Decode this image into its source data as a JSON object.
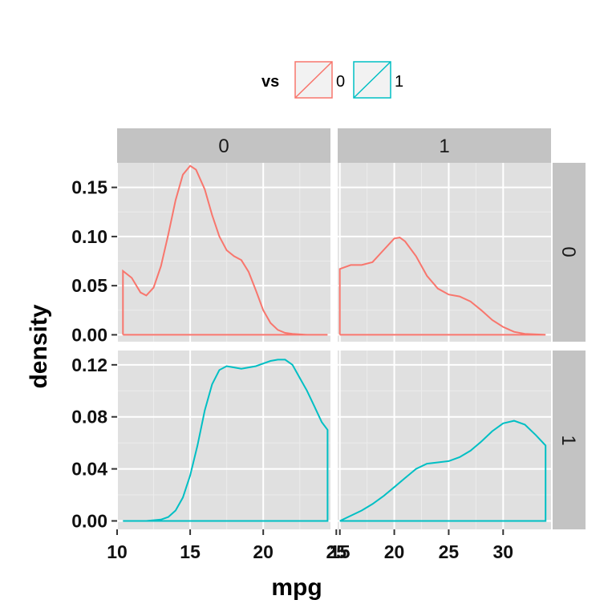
{
  "chart_data": {
    "type": "line",
    "geom": "density",
    "xlabel": "mpg",
    "ylabel": "density",
    "facet_rows": {
      "var": "vs",
      "levels": [
        "0",
        "1"
      ]
    },
    "facet_cols": {
      "var": "vs",
      "levels": [
        "0",
        "1"
      ]
    },
    "legend": {
      "title": "vs",
      "position": "top",
      "entries": [
        {
          "label": "0",
          "color": "#F8766D"
        },
        {
          "label": "1",
          "color": "#00BFC4"
        }
      ]
    },
    "grid": true,
    "x_columns": [
      {
        "col": "0",
        "xlim": [
          10.0,
          24.6
        ],
        "ticks": [
          10,
          15,
          20,
          25
        ]
      },
      {
        "col": "1",
        "xlim": [
          14.8,
          34.4
        ],
        "ticks": [
          15,
          20,
          25,
          30
        ]
      }
    ],
    "y_rows": [
      {
        "row": "0",
        "ylim": [
          -0.007,
          0.175
        ],
        "ticks": [
          0.0,
          0.05,
          0.1,
          0.15
        ],
        "tick_labels": [
          "0.00",
          "0.05",
          "0.10",
          "0.15"
        ]
      },
      {
        "row": "1",
        "ylim": [
          -0.0065,
          0.131
        ],
        "ticks": [
          0.0,
          0.04,
          0.08,
          0.12
        ],
        "tick_labels": [
          "0.00",
          "0.04",
          "0.08",
          "0.12"
        ]
      }
    ],
    "panels": [
      {
        "row": "0",
        "col": "0",
        "series": "0",
        "x": [
          10.4,
          10.4,
          11.0,
          11.6,
          12.0,
          12.5,
          13.0,
          13.5,
          14.0,
          14.5,
          15.0,
          15.4,
          16.0,
          16.5,
          17.0,
          17.5,
          18.0,
          18.5,
          19.0,
          19.5,
          20.0,
          20.5,
          21.0,
          21.5,
          22.0,
          23.0,
          24.4
        ],
        "y": [
          0.0,
          0.065,
          0.058,
          0.043,
          0.04,
          0.048,
          0.07,
          0.102,
          0.137,
          0.163,
          0.172,
          0.168,
          0.148,
          0.122,
          0.1,
          0.086,
          0.08,
          0.076,
          0.064,
          0.045,
          0.025,
          0.012,
          0.005,
          0.002,
          0.001,
          0.0,
          0.0
        ]
      },
      {
        "row": "0",
        "col": "1",
        "series": "0",
        "x": [
          15.0,
          15.0,
          16.0,
          17.0,
          18.0,
          19.0,
          20.0,
          20.5,
          21.0,
          22.0,
          23.0,
          24.0,
          25.0,
          26.0,
          27.0,
          28.0,
          29.0,
          30.0,
          31.0,
          32.0,
          33.9
        ],
        "y": [
          0.0,
          0.067,
          0.071,
          0.071,
          0.074,
          0.086,
          0.098,
          0.099,
          0.095,
          0.08,
          0.06,
          0.047,
          0.041,
          0.039,
          0.034,
          0.025,
          0.015,
          0.008,
          0.003,
          0.001,
          0.0
        ]
      },
      {
        "row": "1",
        "col": "0",
        "series": "1",
        "x": [
          10.4,
          12.0,
          13.0,
          13.5,
          14.0,
          14.5,
          15.0,
          15.5,
          16.0,
          16.5,
          17.0,
          17.5,
          18.0,
          18.5,
          19.0,
          19.5,
          20.0,
          20.5,
          21.0,
          21.5,
          22.0,
          22.5,
          23.0,
          23.5,
          24.0,
          24.4,
          24.4
        ],
        "y": [
          0.0,
          0.0,
          0.001,
          0.003,
          0.008,
          0.018,
          0.035,
          0.058,
          0.085,
          0.105,
          0.116,
          0.119,
          0.118,
          0.117,
          0.118,
          0.119,
          0.121,
          0.123,
          0.124,
          0.124,
          0.12,
          0.11,
          0.1,
          0.088,
          0.076,
          0.07,
          0.0
        ]
      },
      {
        "row": "1",
        "col": "1",
        "series": "1",
        "x": [
          15.0,
          16.0,
          17.0,
          18.0,
          19.0,
          20.0,
          21.0,
          22.0,
          23.0,
          24.0,
          25.0,
          26.0,
          27.0,
          28.0,
          29.0,
          30.0,
          31.0,
          32.0,
          33.0,
          33.9,
          33.9
        ],
        "y": [
          0.0,
          0.004,
          0.008,
          0.013,
          0.019,
          0.026,
          0.033,
          0.04,
          0.044,
          0.045,
          0.046,
          0.049,
          0.054,
          0.061,
          0.069,
          0.075,
          0.077,
          0.074,
          0.066,
          0.058,
          0.0
        ]
      }
    ]
  }
}
